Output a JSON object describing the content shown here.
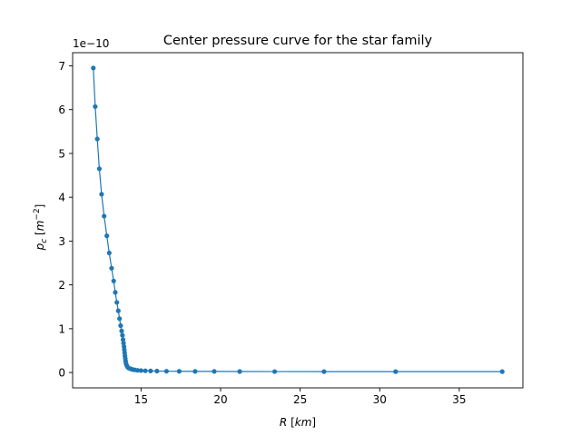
{
  "chart_data": {
    "type": "line",
    "title": "Center pressure curve for the star family",
    "xlabel": {
      "text": "R",
      "unit": "km"
    },
    "ylabel": {
      "text": "p",
      "sub": "c",
      "unit_base": "m",
      "unit_sup": "−2"
    },
    "offset_label": "1e−10",
    "y_scale_factor": 1e-10,
    "xlim": [
      10.7,
      39.0
    ],
    "ylim": [
      -0.35,
      7.3
    ],
    "grid": false,
    "legend": "none",
    "marker": "circle",
    "x_ticks": [
      15,
      20,
      25,
      30,
      35
    ],
    "y_ticks": [
      0,
      1,
      2,
      3,
      4,
      5,
      6,
      7
    ],
    "series": [
      {
        "color": "#1f77b4",
        "x": [
          12.0,
          12.12,
          12.25,
          12.38,
          12.52,
          12.68,
          12.85,
          13.0,
          13.15,
          13.28,
          13.38,
          13.48,
          13.57,
          13.65,
          13.72,
          13.78,
          13.83,
          13.87,
          13.9,
          13.93,
          13.95,
          13.97,
          13.99,
          14.01,
          14.03,
          14.06,
          14.1,
          14.16,
          14.24,
          14.34,
          14.46,
          14.6,
          14.78,
          15.0,
          15.27,
          15.6,
          16.0,
          16.6,
          17.4,
          18.4,
          19.6,
          21.2,
          23.4,
          26.5,
          31.0,
          37.7
        ],
        "values": [
          6.95,
          6.07,
          5.33,
          4.65,
          4.07,
          3.57,
          3.12,
          2.73,
          2.38,
          2.09,
          1.83,
          1.6,
          1.41,
          1.23,
          1.07,
          0.95,
          0.85,
          0.75,
          0.67,
          0.59,
          0.52,
          0.45,
          0.38,
          0.32,
          0.26,
          0.2,
          0.16,
          0.12,
          0.1,
          0.085,
          0.07,
          0.06,
          0.05,
          0.045,
          0.04,
          0.036,
          0.033,
          0.03,
          0.028,
          0.026,
          0.025,
          0.023,
          0.022,
          0.021,
          0.02,
          0.02
        ]
      }
    ]
  }
}
